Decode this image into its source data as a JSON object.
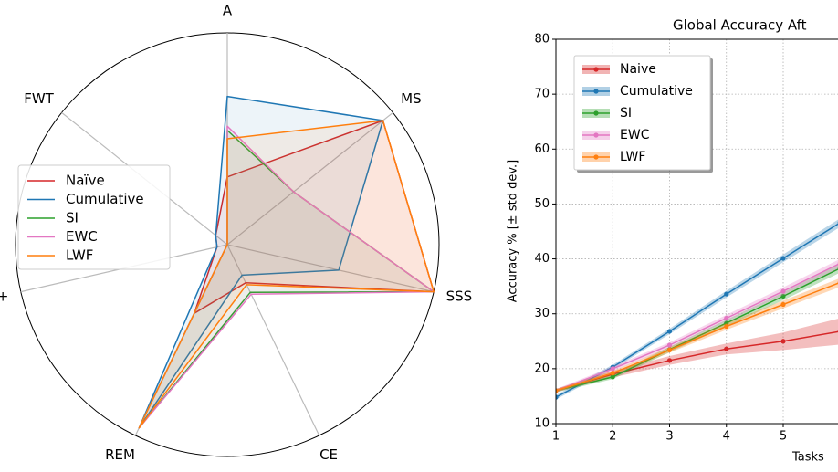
{
  "chart_data": [
    {
      "type": "radar",
      "axes": [
        "A",
        "MS",
        "SSS",
        "CE",
        "REM",
        "BWT+",
        "FWT"
      ],
      "range": [
        0,
        1
      ],
      "series": [
        {
          "name": "Naïve",
          "color": "#d62728",
          "values": [
            0.32,
            0.94,
            1.0,
            0.2,
            0.36,
            0.05,
            0.07
          ]
        },
        {
          "name": "Cumulative",
          "color": "#1f77b4",
          "values": [
            0.7,
            0.94,
            0.54,
            0.16,
            0.96,
            0.05,
            0.07
          ]
        },
        {
          "name": "SI",
          "color": "#2ca02c",
          "values": [
            0.54,
            0.4,
            1.0,
            0.25,
            0.96,
            0.0,
            0.0
          ]
        },
        {
          "name": "EWC",
          "color": "#e377c2",
          "values": [
            0.56,
            0.4,
            1.0,
            0.26,
            0.96,
            0.0,
            0.0
          ]
        },
        {
          "name": "LWF",
          "color": "#ff7f0e",
          "values": [
            0.5,
            0.94,
            1.0,
            0.21,
            0.96,
            0.0,
            0.0
          ]
        }
      ],
      "legend": "center-left"
    },
    {
      "type": "line",
      "title": "Global Accuracy Aft",
      "xlabel": "Tasks",
      "ylabel": "Accuracy % [± std dev.]",
      "xlim": [
        1,
        6
      ],
      "ylim": [
        10,
        80
      ],
      "xticks": [
        1,
        2,
        3,
        4,
        5
      ],
      "yticks": [
        10,
        20,
        30,
        40,
        50,
        60,
        70,
        80
      ],
      "x": [
        1,
        2,
        3,
        4,
        5,
        6
      ],
      "series": [
        {
          "name": "Naive",
          "color": "#d62728",
          "values": [
            16.0,
            19.0,
            21.5,
            23.6,
            25.0,
            26.8
          ],
          "std": [
            0.3,
            0.6,
            0.8,
            1.0,
            1.6,
            2.4
          ]
        },
        {
          "name": "Cumulative",
          "color": "#1f77b4",
          "values": [
            14.8,
            20.3,
            26.8,
            33.6,
            40.1,
            46.6
          ],
          "std": [
            0.4,
            0.4,
            0.5,
            0.6,
            0.7,
            0.8
          ]
        },
        {
          "name": "SI",
          "color": "#2ca02c",
          "values": [
            16.0,
            18.5,
            23.5,
            28.3,
            33.2,
            38.3
          ],
          "std": [
            0.3,
            0.4,
            0.5,
            0.6,
            0.7,
            0.8
          ]
        },
        {
          "name": "EWC",
          "color": "#e377c2",
          "values": [
            16.0,
            20.0,
            24.3,
            29.2,
            34.1,
            39.2
          ],
          "std": [
            0.3,
            0.4,
            0.5,
            0.6,
            0.7,
            0.8
          ]
        },
        {
          "name": "LWF",
          "color": "#ff7f0e",
          "values": [
            16.0,
            19.2,
            23.4,
            27.7,
            31.7,
            35.7
          ],
          "std": [
            0.3,
            0.4,
            0.5,
            0.6,
            0.7,
            0.8
          ]
        }
      ],
      "grid": true,
      "legend": "top-left"
    }
  ]
}
